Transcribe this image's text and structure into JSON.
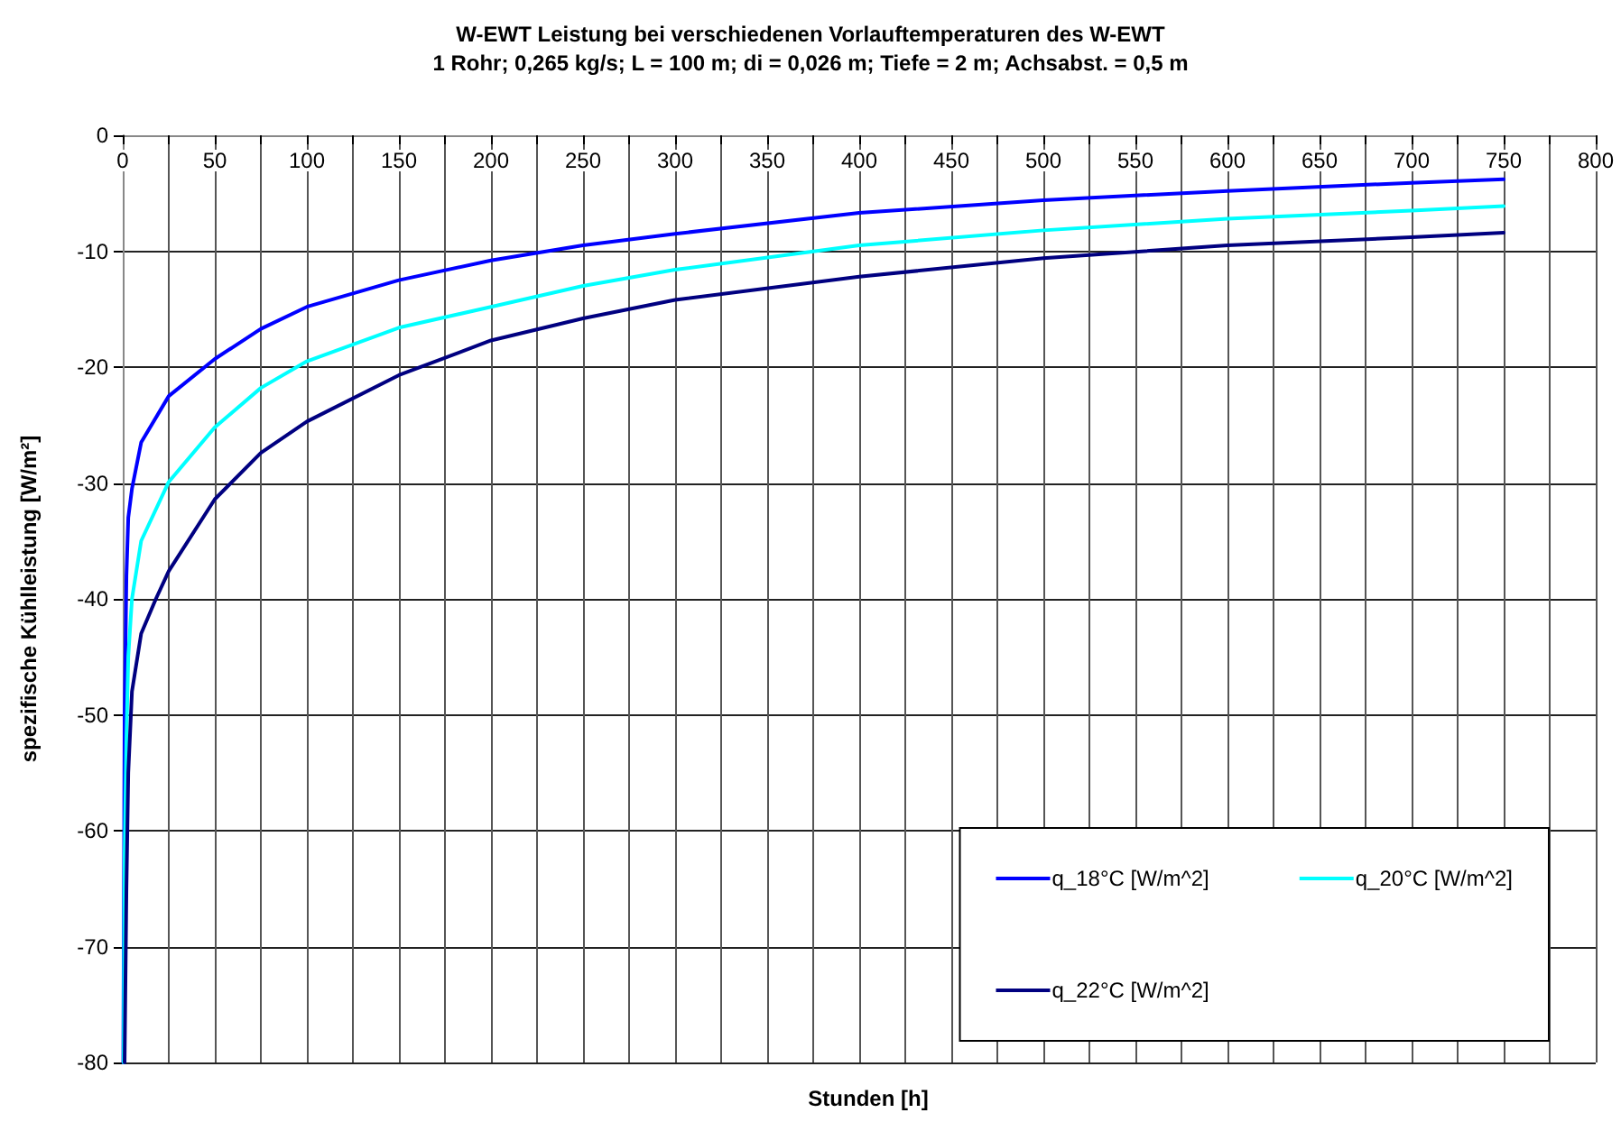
{
  "chart_data": {
    "type": "line",
    "title": "W-EWT Leistung bei verschiedenen Vorlauftemperaturen des W-EWT",
    "subtitle": "1 Rohr; 0,265 kg/s; L = 100 m; di = 0,026 m; Tiefe = 2 m; Achsabst. = 0,5 m",
    "xlabel": "Stunden [h]",
    "ylabel": "spezifische Kühlleistung [W/m²]",
    "series": [
      {
        "name": "q_18°C [W/m^2]",
        "color": "#0000ff",
        "x": [
          0.3,
          1,
          2,
          3,
          5,
          10,
          25,
          50,
          75,
          100,
          150,
          200,
          250,
          300,
          400,
          500,
          600,
          700,
          750
        ],
        "values": [
          -80,
          -50,
          -38,
          -33,
          -30.5,
          -26.5,
          -22.5,
          -19.3,
          -16.7,
          -14.8,
          -12.5,
          -10.8,
          -9.5,
          -8.5,
          -6.7,
          -5.6,
          -4.8,
          -4.1,
          -3.8
        ]
      },
      {
        "name": "q_20°C [W/m^2]",
        "color": "#00ffff",
        "x": [
          0.5,
          1,
          2,
          3,
          5,
          10,
          25,
          50,
          75,
          100,
          150,
          200,
          250,
          300,
          400,
          500,
          600,
          700,
          750
        ],
        "values": [
          -80,
          -62,
          -52,
          -45,
          -40,
          -35,
          -29.9,
          -25.2,
          -21.8,
          -19.5,
          -16.6,
          -14.8,
          -13,
          -11.6,
          -9.5,
          -8.2,
          -7.2,
          -6.5,
          -6.1
        ]
      },
      {
        "name": "q_22°C [W/m^2]",
        "color": "#000080",
        "x": [
          1,
          2,
          3,
          5,
          10,
          18,
          25,
          50,
          75,
          100,
          150,
          200,
          250,
          300,
          400,
          500,
          600,
          700,
          750
        ],
        "values": [
          -80,
          -65,
          -55,
          -48,
          -43,
          -40,
          -37.6,
          -31.4,
          -27.4,
          -24.7,
          -20.7,
          -17.7,
          -15.8,
          -14.2,
          -12.2,
          -10.6,
          -9.5,
          -8.8,
          -8.4
        ]
      }
    ],
    "xlim": [
      0,
      800
    ],
    "xticks": [
      0,
      {
        "value": 25,
        "label": null
      },
      50,
      {
        "value": 75,
        "label": null
      },
      100,
      {
        "value": 125,
        "label": null
      },
      150,
      {
        "value": 175,
        "label": null
      },
      200,
      {
        "value": 225,
        "label": null
      },
      250,
      {
        "value": 275,
        "label": null
      },
      300,
      {
        "value": 325,
        "label": null
      },
      350,
      {
        "value": 375,
        "label": null
      },
      400,
      {
        "value": 425,
        "label": null
      },
      450,
      {
        "value": 475,
        "label": null
      },
      500,
      {
        "value": 525,
        "label": null
      },
      550,
      {
        "value": 575,
        "label": null
      },
      600,
      {
        "value": 625,
        "label": null
      },
      650,
      {
        "value": 675,
        "label": null
      },
      700,
      {
        "value": 725,
        "label": null
      },
      750,
      {
        "value": 775,
        "label": null
      },
      800
    ],
    "ylim": [
      -80,
      0
    ],
    "yticks": [
      -80,
      -70,
      -60,
      -50,
      -40,
      -30,
      -20,
      -10,
      0
    ],
    "grid": true,
    "legend": "bottom right",
    "marker": "none",
    "line_style": "solid"
  }
}
